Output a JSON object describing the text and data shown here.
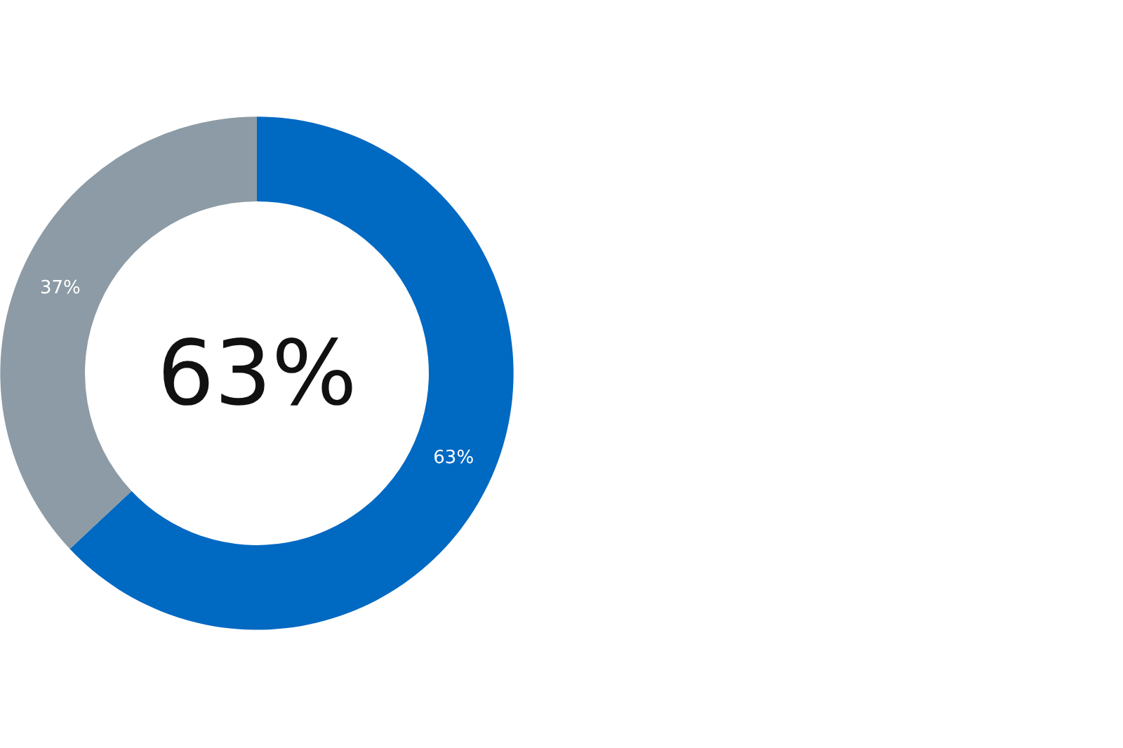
{
  "chart_data": {
    "type": "donut",
    "categories": [
      null,
      null
    ],
    "values": [
      63,
      37
    ],
    "colors": [
      "#0069c2",
      "#8c9ba5"
    ],
    "value_labels": [
      "63%",
      "37%"
    ],
    "annotations": [
      "63%"
    ],
    "legend": false
  }
}
